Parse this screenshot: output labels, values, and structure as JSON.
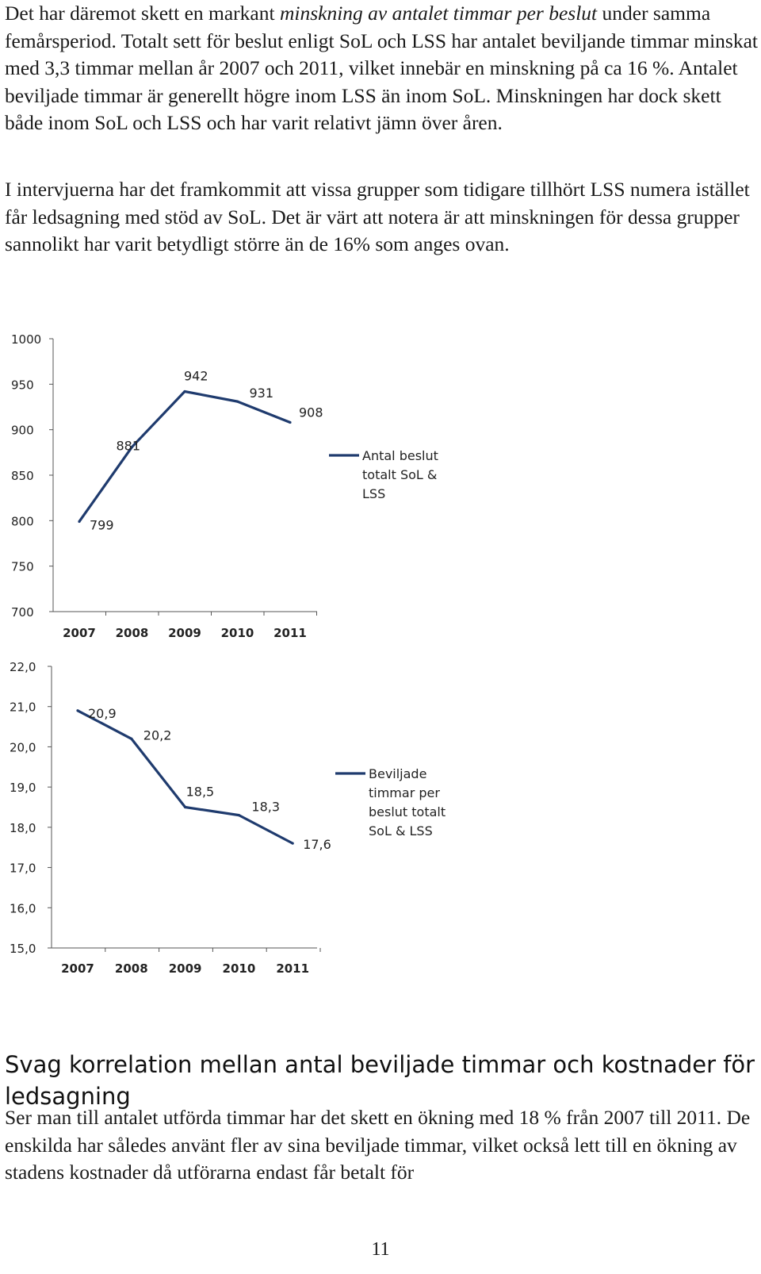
{
  "paragraphs": {
    "p1_pre": "Det har däremot skett en markant ",
    "p1_em": "minskning av antalet timmar per beslut",
    "p1_post": " under samma femårsperiod. Totalt sett för beslut enligt SoL och LSS har antalet beviljande timmar minskat med 3,3 timmar mellan år 2007 och 2011, vilket innebär en minskning på ca 16 %. Antalet beviljade timmar är generellt högre inom LSS än inom SoL. Minskningen har dock skett både inom SoL och LSS och har varit relativt jämn över åren.",
    "p2": "I intervjuerna har det framkommit att vissa grupper som tidigare tillhört LSS numera istället får ledsagning med stöd av SoL. Det är värt att notera är att minskningen för dessa grupper sannolikt har varit betydligt större än de 16% som anges ovan.",
    "heading": "Svag korrelation mellan antal beviljade timmar och kostnader för ledsagning",
    "p3": "Ser man till antalet utförda timmar har det skett en ökning med 18 % från 2007 till 2011. De enskilda har således använt fler av sina beviljade timmar, vilket också lett till en ökning av stadens kostnader då utförarna endast får betalt för"
  },
  "page_number": "11",
  "chart_data": [
    {
      "type": "line",
      "categories": [
        "2007",
        "2008",
        "2009",
        "2010",
        "2011"
      ],
      "series": [
        {
          "name": "Antal beslut totalt SoL & LSS",
          "values": [
            799,
            881,
            942,
            931,
            908
          ]
        }
      ],
      "data_labels": [
        "799",
        "881",
        "942",
        "931",
        "908"
      ],
      "yticks": [
        1000,
        950,
        900,
        850,
        800,
        750,
        700
      ],
      "ytick_labels": [
        "1000",
        "950",
        "900",
        "850",
        "800",
        "750",
        "700"
      ],
      "ylim": [
        700,
        1000
      ],
      "legend_lines": [
        "Antal beslut",
        "totalt SoL &",
        "LSS"
      ],
      "legend_position": "right",
      "line_color": "#1f3b6e"
    },
    {
      "type": "line",
      "categories": [
        "2007",
        "2008",
        "2009",
        "2010",
        "2011"
      ],
      "series": [
        {
          "name": "Beviljade timmar per beslut totalt SoL & LSS",
          "values": [
            20.9,
            20.2,
            18.5,
            18.3,
            17.6
          ]
        }
      ],
      "data_labels": [
        "20,9",
        "20,2",
        "18,5",
        "18,3",
        "17,6"
      ],
      "yticks": [
        22,
        21,
        20,
        19,
        18,
        17,
        16,
        15
      ],
      "ytick_labels": [
        "22,0",
        "21,0",
        "20,0",
        "19,0",
        "18,0",
        "17,0",
        "16,0",
        "15,0"
      ],
      "ylim": [
        15,
        22
      ],
      "legend_lines": [
        "Beviljade",
        "timmar per",
        "beslut totalt",
        "SoL & LSS"
      ],
      "legend_position": "right",
      "line_color": "#1f3b6e"
    }
  ]
}
